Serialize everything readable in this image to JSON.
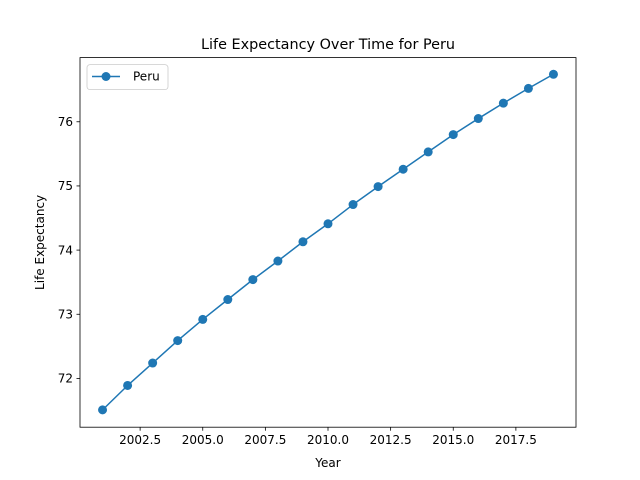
{
  "chart_data": {
    "type": "line",
    "title": "Life Expectancy Over Time for Peru",
    "xlabel": "Year",
    "ylabel": "Life Expectancy",
    "xlim": [
      2000.1,
      2019.9
    ],
    "ylim": [
      71.24,
      77.0
    ],
    "xticks": [
      2002.5,
      2005.0,
      2007.5,
      2010.0,
      2012.5,
      2015.0,
      2017.5
    ],
    "xtick_labels": [
      "2002.5",
      "2005.0",
      "2007.5",
      "2010.0",
      "2012.5",
      "2015.0",
      "2017.5"
    ],
    "yticks": [
      72,
      73,
      74,
      75,
      76
    ],
    "ytick_labels": [
      "72",
      "73",
      "74",
      "75",
      "76"
    ],
    "grid": false,
    "legend_position": "upper-left",
    "series": [
      {
        "name": "Peru",
        "color": "#1f77b4",
        "marker": "circle",
        "x": [
          2001,
          2002,
          2003,
          2004,
          2005,
          2006,
          2007,
          2008,
          2009,
          2010,
          2011,
          2012,
          2013,
          2014,
          2015,
          2016,
          2017,
          2018,
          2019
        ],
        "y": [
          71.51,
          71.89,
          72.24,
          72.59,
          72.92,
          73.23,
          73.54,
          73.83,
          74.13,
          74.41,
          74.71,
          74.99,
          75.26,
          75.53,
          75.8,
          76.05,
          76.29,
          76.52,
          76.74
        ]
      }
    ]
  }
}
